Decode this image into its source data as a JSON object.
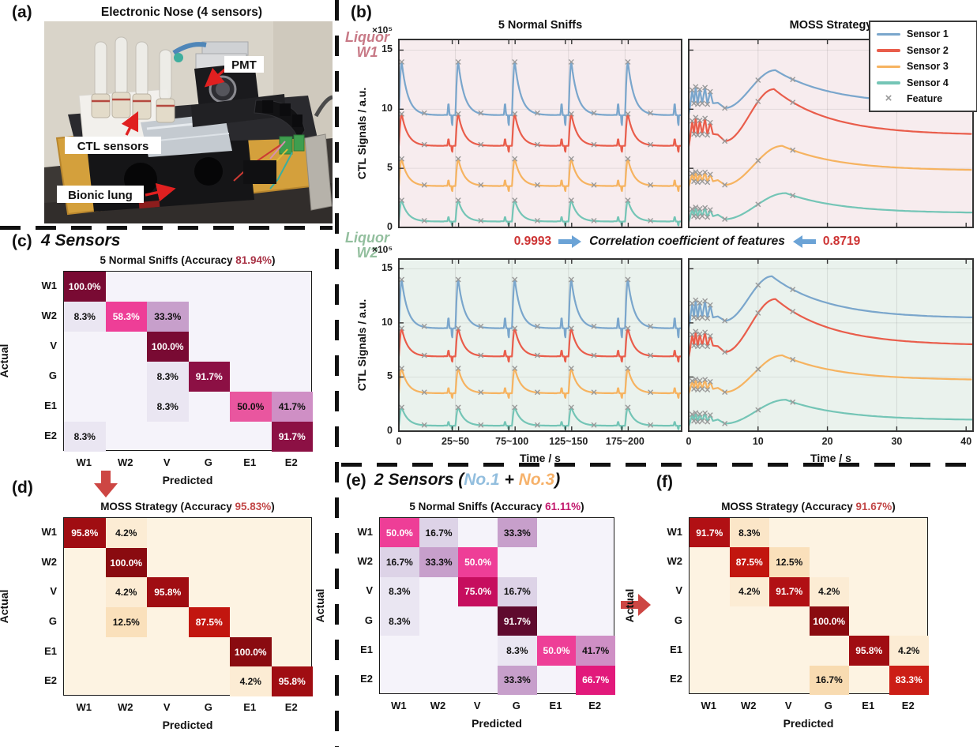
{
  "panel_a": {
    "label": "(a)",
    "title": "Electronic Nose (4 sensors)",
    "annotations": {
      "pmt": "PMT",
      "ctl": "CTL sensors",
      "lung": "Bionic lung"
    },
    "arrow_color": "#e02020"
  },
  "panel_b": {
    "label": "(b)",
    "row_labels": [
      {
        "line1": "Liquor",
        "line2": "W1",
        "color": "#c87a87"
      },
      {
        "line1": "Liquor",
        "line2": "W2",
        "color": "#93bf9e"
      }
    ],
    "correlation": {
      "left_value": "0.9993",
      "label": "Correlation coefficient of features",
      "right_value": "0.8719",
      "value_color": "#cd3333",
      "arrow_color": "#6ba3d6"
    },
    "legend": {
      "entries": [
        {
          "label": "Sensor 1",
          "type": "line",
          "color": "#7aa6cc"
        },
        {
          "label": "Sensor 2",
          "type": "line",
          "color": "#e95d4b"
        },
        {
          "label": "Sensor 3",
          "type": "line",
          "color": "#f6b360"
        },
        {
          "label": "Sensor 4",
          "type": "line",
          "color": "#74c5b6"
        },
        {
          "label": "Feature",
          "type": "marker",
          "marker": "×",
          "color": "#999999"
        }
      ]
    }
  },
  "panel_c": {
    "label": "(c)",
    "heading": "4 Sensors"
  },
  "panel_d": {
    "label": "(d)"
  },
  "panel_e": {
    "label": "(e)",
    "heading_parts": [
      {
        "t": "2 Sensors (",
        "c": "#111111"
      },
      {
        "t": "No.1",
        "c": "#92bede"
      },
      {
        "t": " + ",
        "c": "#111111"
      },
      {
        "t": "No.3",
        "c": "#f6b26b"
      },
      {
        "t": ")",
        "c": "#111111"
      }
    ]
  },
  "panel_f": {
    "label": "(f)"
  },
  "flow_arrows": {
    "color": "#cd4643"
  },
  "chart_data": [
    {
      "id": "w1_sniffs",
      "type": "line",
      "kind": "sniffs",
      "title": "5 Normal Sniffs",
      "bg": "#f7ecee",
      "xlabel": "Time / s",
      "xticks": [
        "0",
        "25~50",
        "75~100",
        "125~150",
        "175~200"
      ],
      "ylabel": "CTL Signals / a.u.",
      "y_multiplier": "×10⁵",
      "yticks": [
        0,
        5,
        10,
        15
      ],
      "ylim": [
        0,
        15.9
      ],
      "series": [
        {
          "name": "Sensor 1",
          "color": "#7aa6cc",
          "baseline": 9.5,
          "peak": 14.0
        },
        {
          "name": "Sensor 2",
          "color": "#e95d4b",
          "baseline": 6.9,
          "peak": 9.6
        },
        {
          "name": "Sensor 3",
          "color": "#f6b360",
          "baseline": 3.5,
          "peak": 5.8
        },
        {
          "name": "Sensor 4",
          "color": "#74c5b6",
          "baseline": 0.5,
          "peak": 2.3
        }
      ]
    },
    {
      "id": "w1_moss",
      "type": "line",
      "kind": "moss",
      "title": "MOSS Strategy",
      "bg": "#f7ecee",
      "xlabel": "Time / s",
      "xticks": [
        "0",
        "10",
        "20",
        "30",
        "40"
      ],
      "xlim": [
        0,
        41
      ],
      "yticks": [
        0,
        5,
        10,
        15
      ],
      "ylim": [
        0,
        15.9
      ],
      "series": [
        {
          "name": "Sensor 1",
          "color": "#7aa6cc",
          "start": 9.6,
          "spike_top": 11.9,
          "spike_low": 10.5,
          "dip": 10.1,
          "hump_peak": 13.3,
          "hump_t": 12.5,
          "end": 10.4
        },
        {
          "name": "Sensor 2",
          "color": "#e95d4b",
          "start": 6.9,
          "spike_top": 9.3,
          "spike_low": 7.9,
          "dip": 7.3,
          "hump_peak": 11.7,
          "hump_t": 12.3,
          "end": 7.8
        },
        {
          "name": "Sensor 3",
          "color": "#f6b360",
          "start": 3.5,
          "spike_top": 4.7,
          "spike_low": 3.9,
          "dip": 3.6,
          "hump_peak": 6.9,
          "hump_t": 13.5,
          "end": 4.8
        },
        {
          "name": "Sensor 4",
          "color": "#74c5b6",
          "start": 0.5,
          "spike_top": 1.7,
          "spike_low": 0.95,
          "dip": 0.7,
          "hump_peak": 2.9,
          "hump_t": 14.0,
          "end": 1.2
        }
      ]
    },
    {
      "id": "w2_sniffs",
      "type": "line",
      "kind": "sniffs",
      "title": "",
      "bg": "#eaf2ed",
      "xlabel": "Time / s",
      "xticks": [
        "0",
        "25~50",
        "75~100",
        "125~150",
        "175~200"
      ],
      "ylabel": "CTL Signals / a.u.",
      "y_multiplier": "×10⁵",
      "yticks": [
        0,
        5,
        10,
        15
      ],
      "ylim": [
        0,
        15.9
      ],
      "series": [
        {
          "name": "Sensor 1",
          "color": "#7aa6cc",
          "baseline": 9.5,
          "peak": 14.0
        },
        {
          "name": "Sensor 2",
          "color": "#e95d4b",
          "baseline": 6.9,
          "peak": 9.5
        },
        {
          "name": "Sensor 3",
          "color": "#f6b360",
          "baseline": 3.5,
          "peak": 5.8
        },
        {
          "name": "Sensor 4",
          "color": "#74c5b6",
          "baseline": 0.5,
          "peak": 2.2
        }
      ]
    },
    {
      "id": "w2_moss",
      "type": "line",
      "kind": "moss",
      "title": "",
      "bg": "#eaf2ed",
      "xlabel": "Time / s",
      "xticks": [
        "0",
        "10",
        "20",
        "30",
        "40"
      ],
      "xlim": [
        0,
        41
      ],
      "yticks": [
        0,
        5,
        10,
        15
      ],
      "ylim": [
        0,
        15.9
      ],
      "series": [
        {
          "name": "Sensor 1",
          "color": "#7aa6cc",
          "start": 9.6,
          "spike_top": 12.1,
          "spike_low": 10.5,
          "dip": 10.2,
          "hump_peak": 14.3,
          "hump_t": 12.0,
          "end": 10.4
        },
        {
          "name": "Sensor 2",
          "color": "#e95d4b",
          "start": 6.9,
          "spike_top": 9.2,
          "spike_low": 7.9,
          "dip": 7.3,
          "hump_peak": 12.2,
          "hump_t": 12.5,
          "end": 7.9
        },
        {
          "name": "Sensor 3",
          "color": "#f6b360",
          "start": 3.5,
          "spike_top": 4.8,
          "spike_low": 3.9,
          "dip": 3.6,
          "hump_peak": 7.0,
          "hump_t": 13.5,
          "end": 4.7
        },
        {
          "name": "Sensor 4",
          "color": "#74c5b6",
          "start": 0.5,
          "spike_top": 1.7,
          "spike_low": 0.95,
          "dip": 0.7,
          "hump_peak": 2.9,
          "hump_t": 14.0,
          "end": 1.0
        }
      ]
    },
    {
      "id": "mat_c",
      "type": "heatmap",
      "title_prefix": "5 Normal Sniffs (Accuracy ",
      "accuracy": "81.94%",
      "title_suffix": ")",
      "acc_color": "#a93346",
      "xlabel": "Predicted",
      "ylabel": "Actual",
      "labels": [
        "W1",
        "W2",
        "V",
        "G",
        "E1",
        "E2"
      ],
      "bg": "#f5f3fa",
      "cells": [
        {
          "r": 0,
          "c": 0,
          "v": "100.0%",
          "bg": "#790a33",
          "tc": "#ffffff"
        },
        {
          "r": 1,
          "c": 0,
          "v": "8.3%",
          "bg": "#eae6f2"
        },
        {
          "r": 1,
          "c": 1,
          "v": "58.3%",
          "bg": "#ee3e97",
          "tc": "#ffffff"
        },
        {
          "r": 1,
          "c": 2,
          "v": "33.3%",
          "bg": "#c79fcb"
        },
        {
          "r": 2,
          "c": 2,
          "v": "100.0%",
          "bg": "#790a33",
          "tc": "#ffffff"
        },
        {
          "r": 3,
          "c": 2,
          "v": "8.3%",
          "bg": "#eae6f2"
        },
        {
          "r": 3,
          "c": 3,
          "v": "91.7%",
          "bg": "#8c1044",
          "tc": "#ffffff"
        },
        {
          "r": 4,
          "c": 2,
          "v": "8.3%",
          "bg": "#eae6f2"
        },
        {
          "r": 4,
          "c": 4,
          "v": "50.0%",
          "bg": "#e9569f"
        },
        {
          "r": 4,
          "c": 5,
          "v": "41.7%",
          "bg": "#cf8fc5"
        },
        {
          "r": 5,
          "c": 0,
          "v": "8.3%",
          "bg": "#eae6f2"
        },
        {
          "r": 5,
          "c": 5,
          "v": "91.7%",
          "bg": "#8c1044",
          "tc": "#ffffff"
        }
      ]
    },
    {
      "id": "mat_d",
      "type": "heatmap",
      "title_prefix": "MOSS Strategy (Accuracy ",
      "accuracy": "95.83%",
      "title_suffix": ")",
      "acc_color": "#c24848",
      "xlabel": "Predicted",
      "ylabel": "Actual",
      "labels": [
        "W1",
        "W2",
        "V",
        "G",
        "E1",
        "E2"
      ],
      "bg": "#fdf3e2",
      "cells": [
        {
          "r": 0,
          "c": 0,
          "v": "95.8%",
          "bg": "#a00d12",
          "tc": "#ffffff"
        },
        {
          "r": 0,
          "c": 1,
          "v": "4.2%",
          "bg": "#fcecd4"
        },
        {
          "r": 1,
          "c": 1,
          "v": "100.0%",
          "bg": "#8a0b10",
          "tc": "#ffffff"
        },
        {
          "r": 2,
          "c": 1,
          "v": "4.2%",
          "bg": "#fcecd4"
        },
        {
          "r": 2,
          "c": 2,
          "v": "95.8%",
          "bg": "#a00d12",
          "tc": "#ffffff"
        },
        {
          "r": 3,
          "c": 1,
          "v": "12.5%",
          "bg": "#fae0bb"
        },
        {
          "r": 3,
          "c": 3,
          "v": "87.5%",
          "bg": "#c2160f",
          "tc": "#ffffff"
        },
        {
          "r": 4,
          "c": 4,
          "v": "100.0%",
          "bg": "#8a0b10",
          "tc": "#ffffff"
        },
        {
          "r": 5,
          "c": 4,
          "v": "4.2%",
          "bg": "#fcecd4"
        },
        {
          "r": 5,
          "c": 5,
          "v": "95.8%",
          "bg": "#a00d12",
          "tc": "#ffffff"
        }
      ]
    },
    {
      "id": "mat_e",
      "type": "heatmap",
      "title_prefix": "5 Normal Sniffs (Accuracy ",
      "accuracy": "61.11%",
      "title_suffix": ")",
      "acc_color": "#c2186c",
      "xlabel": "Predicted",
      "ylabel": "Actual",
      "labels": [
        "W1",
        "W2",
        "V",
        "G",
        "E1",
        "E2"
      ],
      "bg": "#f5f3fa",
      "cells": [
        {
          "r": 0,
          "c": 0,
          "v": "50.0%",
          "bg": "#ee3e97",
          "tc": "#ffffff"
        },
        {
          "r": 0,
          "c": 1,
          "v": "16.7%",
          "bg": "#ddd3e7"
        },
        {
          "r": 0,
          "c": 3,
          "v": "33.3%",
          "bg": "#c79fcb"
        },
        {
          "r": 1,
          "c": 0,
          "v": "16.7%",
          "bg": "#ddd3e7"
        },
        {
          "r": 1,
          "c": 1,
          "v": "33.3%",
          "bg": "#c79fcb"
        },
        {
          "r": 1,
          "c": 2,
          "v": "50.0%",
          "bg": "#ee3e97",
          "tc": "#ffffff"
        },
        {
          "r": 2,
          "c": 0,
          "v": "8.3%",
          "bg": "#eae6f2"
        },
        {
          "r": 2,
          "c": 2,
          "v": "75.0%",
          "bg": "#c60e5e",
          "tc": "#ffffff"
        },
        {
          "r": 2,
          "c": 3,
          "v": "16.7%",
          "bg": "#ddd3e7"
        },
        {
          "r": 3,
          "c": 0,
          "v": "8.3%",
          "bg": "#eae6f2"
        },
        {
          "r": 3,
          "c": 3,
          "v": "91.7%",
          "bg": "#5f0a2e",
          "tc": "#ffffff"
        },
        {
          "r": 4,
          "c": 3,
          "v": "8.3%",
          "bg": "#eae6f2"
        },
        {
          "r": 4,
          "c": 4,
          "v": "50.0%",
          "bg": "#ee3e97",
          "tc": "#ffffff"
        },
        {
          "r": 4,
          "c": 5,
          "v": "41.7%",
          "bg": "#cf8fc5"
        },
        {
          "r": 5,
          "c": 3,
          "v": "33.3%",
          "bg": "#c79fcb"
        },
        {
          "r": 5,
          "c": 5,
          "v": "66.7%",
          "bg": "#e2197b",
          "tc": "#ffffff"
        }
      ]
    },
    {
      "id": "mat_f",
      "type": "heatmap",
      "title_prefix": "MOSS Strategy (Accuracy ",
      "accuracy": "91.67%",
      "title_suffix": ")",
      "acc_color": "#c24848",
      "xlabel": "Predicted",
      "ylabel": "Actual",
      "labels": [
        "W1",
        "W2",
        "V",
        "G",
        "E1",
        "E2"
      ],
      "bg": "#fdf3e2",
      "cells": [
        {
          "r": 0,
          "c": 0,
          "v": "91.7%",
          "bg": "#b11014",
          "tc": "#ffffff"
        },
        {
          "r": 0,
          "c": 1,
          "v": "8.3%",
          "bg": "#fbe6c8"
        },
        {
          "r": 1,
          "c": 1,
          "v": "87.5%",
          "bg": "#c2160f",
          "tc": "#ffffff"
        },
        {
          "r": 1,
          "c": 2,
          "v": "12.5%",
          "bg": "#fae0bb"
        },
        {
          "r": 2,
          "c": 1,
          "v": "4.2%",
          "bg": "#fcecd4"
        },
        {
          "r": 2,
          "c": 2,
          "v": "91.7%",
          "bg": "#b11014",
          "tc": "#ffffff"
        },
        {
          "r": 2,
          "c": 3,
          "v": "4.2%",
          "bg": "#fcecd4"
        },
        {
          "r": 3,
          "c": 3,
          "v": "100.0%",
          "bg": "#8a0b10",
          "tc": "#ffffff"
        },
        {
          "r": 4,
          "c": 4,
          "v": "95.8%",
          "bg": "#a00d12",
          "tc": "#ffffff"
        },
        {
          "r": 4,
          "c": 5,
          "v": "4.2%",
          "bg": "#fcecd4"
        },
        {
          "r": 5,
          "c": 3,
          "v": "16.7%",
          "bg": "#f8dbb1"
        },
        {
          "r": 5,
          "c": 5,
          "v": "83.3%",
          "bg": "#cc1e16",
          "tc": "#ffffff"
        }
      ]
    }
  ]
}
